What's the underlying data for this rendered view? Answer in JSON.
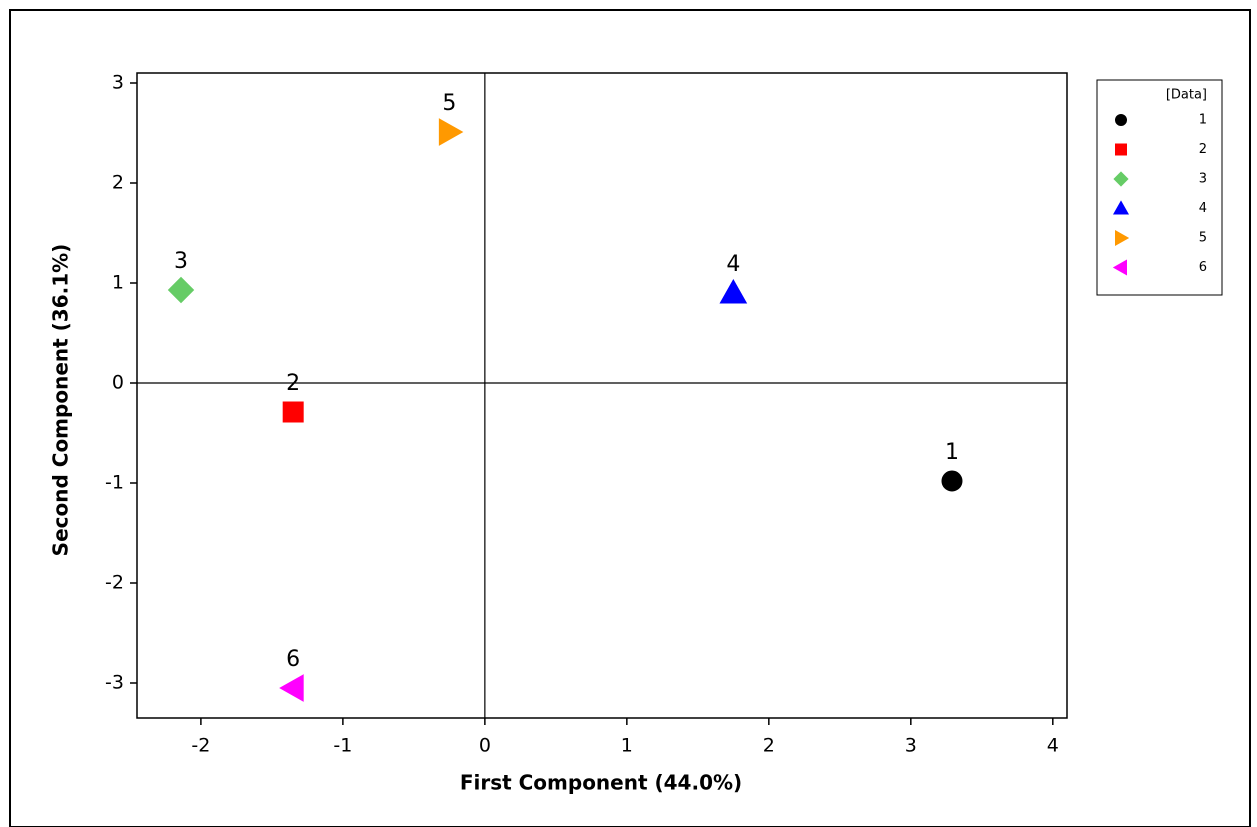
{
  "chart_data": {
    "type": "scatter",
    "x_label": "First Component (44.0%)",
    "y_label": "Second Component (36.1%)",
    "legend_title": "[Data]",
    "legend_position": "upper right outside",
    "xlim": [
      -2.45,
      4.1
    ],
    "xticks": [
      -2,
      -1,
      0,
      1,
      2,
      3,
      4
    ],
    "ylim": [
      -3.35,
      3.1
    ],
    "yticks": [
      -3,
      -2,
      -1,
      0,
      1,
      2,
      3
    ],
    "series": [
      {
        "name": "1",
        "color": "#000000",
        "marker": "circle",
        "x": [
          3.29
        ],
        "y": [
          -0.98
        ]
      },
      {
        "name": "2",
        "color": "#ff0000",
        "marker": "square",
        "x": [
          -1.35
        ],
        "y": [
          -0.29
        ]
      },
      {
        "name": "3",
        "color": "#66cc66",
        "marker": "diamond",
        "x": [
          -2.14
        ],
        "y": [
          0.93
        ]
      },
      {
        "name": "4",
        "color": "#0000ff",
        "marker": "triangle-up",
        "x": [
          1.75
        ],
        "y": [
          0.9
        ]
      },
      {
        "name": "5",
        "color": "#ff9900",
        "marker": "triangle-right",
        "x": [
          -0.25
        ],
        "y": [
          2.51
        ]
      },
      {
        "name": "6",
        "color": "#ff00ff",
        "marker": "triangle-left",
        "x": [
          -1.35
        ],
        "y": [
          -3.05
        ]
      }
    ]
  }
}
